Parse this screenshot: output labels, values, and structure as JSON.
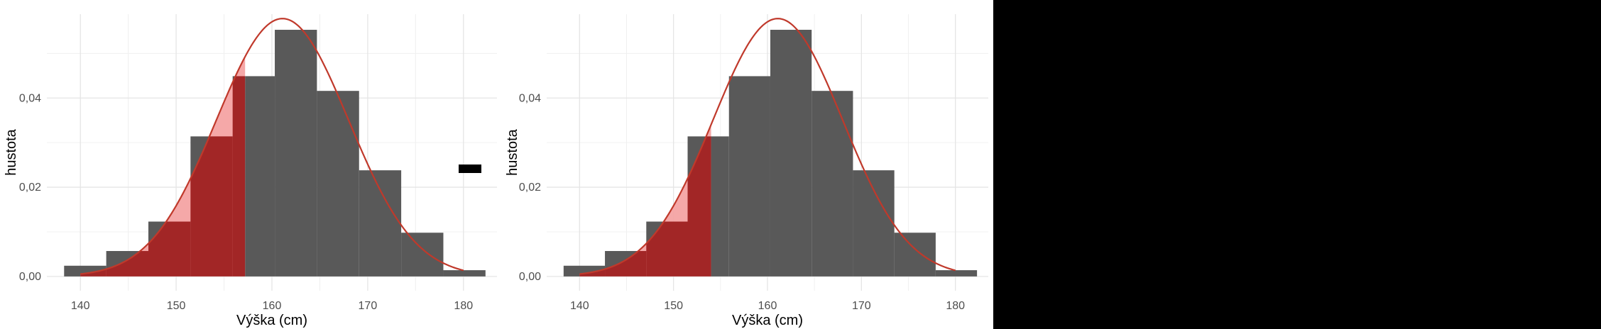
{
  "chart_data": [
    {
      "type": "bar",
      "subtype": "histogram-with-density",
      "xlabel": "Výška (cm)",
      "ylabel": "hustota",
      "xlim": [
        136.5,
        183.5
      ],
      "ylim": [
        -0.0032,
        0.0588
      ],
      "x_ticks": [
        140,
        150,
        160,
        170,
        180
      ],
      "x_tick_labels": [
        "140",
        "150",
        "160",
        "170",
        "180"
      ],
      "y_ticks": [
        0.0,
        0.02,
        0.04
      ],
      "y_tick_labels": [
        "0,00",
        "0,02",
        "0,04"
      ],
      "grid": true,
      "bins": [
        {
          "x0": 138.3,
          "x1": 142.7,
          "density": 0.0024
        },
        {
          "x0": 142.7,
          "x1": 147.1,
          "density": 0.0057
        },
        {
          "x0": 147.1,
          "x1": 151.5,
          "density": 0.0123
        },
        {
          "x0": 151.5,
          "x1": 155.9,
          "density": 0.0314
        },
        {
          "x0": 155.9,
          "x1": 160.3,
          "density": 0.0449
        },
        {
          "x0": 160.3,
          "x1": 164.7,
          "density": 0.0553
        },
        {
          "x0": 164.7,
          "x1": 169.1,
          "density": 0.0416
        },
        {
          "x0": 169.1,
          "x1": 173.5,
          "density": 0.0238
        },
        {
          "x0": 173.5,
          "x1": 177.9,
          "density": 0.0098
        },
        {
          "x0": 177.9,
          "x1": 182.3,
          "density": 0.0014
        }
      ],
      "density_curve": {
        "mean": 161.1,
        "sd": 6.9,
        "x_range": [
          140,
          180
        ],
        "color": "#c0392b"
      },
      "shaded_below": 157.2,
      "colors": {
        "bar": "#595959",
        "curve": "#c0392b",
        "fill_light": "#f4a3a3",
        "fill_dark": "#9b1b1b"
      }
    },
    {
      "type": "bar",
      "subtype": "histogram-with-density",
      "xlabel": "Výška (cm)",
      "ylabel": "hustota",
      "xlim": [
        136.5,
        183.5
      ],
      "ylim": [
        -0.0032,
        0.0588
      ],
      "x_ticks": [
        140,
        150,
        160,
        170,
        180
      ],
      "x_tick_labels": [
        "140",
        "150",
        "160",
        "170",
        "180"
      ],
      "y_ticks": [
        0.0,
        0.02,
        0.04
      ],
      "y_tick_labels": [
        "0,00",
        "0,02",
        "0,04"
      ],
      "grid": true,
      "bins": [
        {
          "x0": 138.3,
          "x1": 142.7,
          "density": 0.0024
        },
        {
          "x0": 142.7,
          "x1": 147.1,
          "density": 0.0057
        },
        {
          "x0": 147.1,
          "x1": 151.5,
          "density": 0.0123
        },
        {
          "x0": 151.5,
          "x1": 155.9,
          "density": 0.0314
        },
        {
          "x0": 155.9,
          "x1": 160.3,
          "density": 0.0449
        },
        {
          "x0": 160.3,
          "x1": 164.7,
          "density": 0.0553
        },
        {
          "x0": 164.7,
          "x1": 169.1,
          "density": 0.0416
        },
        {
          "x0": 169.1,
          "x1": 173.5,
          "density": 0.0238
        },
        {
          "x0": 173.5,
          "x1": 177.9,
          "density": 0.0098
        },
        {
          "x0": 177.9,
          "x1": 182.3,
          "density": 0.0014
        }
      ],
      "density_curve": {
        "mean": 161.1,
        "sd": 6.9,
        "x_range": [
          140,
          180
        ],
        "color": "#c0392b"
      },
      "shaded_below": 154.0,
      "colors": {
        "bar": "#595959",
        "curve": "#c0392b",
        "fill_light": "#f4a3a3",
        "fill_dark": "#9b1b1b"
      }
    }
  ]
}
